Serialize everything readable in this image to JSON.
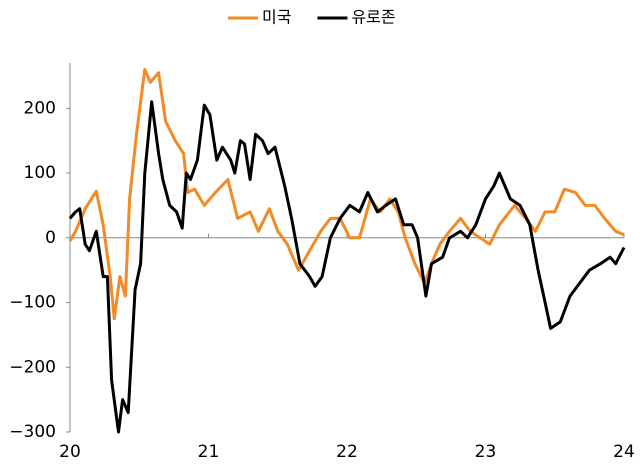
{
  "chart_data": {
    "type": "line",
    "xlim": [
      20,
      24
    ],
    "xticks": [
      20,
      21,
      22,
      23,
      24
    ],
    "ylim": [
      -300,
      270
    ],
    "yticks": [
      {
        "value": -300,
        "label": "−300"
      },
      {
        "value": -200,
        "label": "−200"
      },
      {
        "value": -100,
        "label": "−100"
      },
      0,
      100,
      200
    ],
    "grid": false,
    "legend": "top",
    "series": [
      {
        "name": "미국",
        "color": "#f28a25",
        "x": [
          20.0,
          20.04,
          20.11,
          20.19,
          20.24,
          20.29,
          20.32,
          20.36,
          20.4,
          20.43,
          20.48,
          20.54,
          20.58,
          20.64,
          20.69,
          20.76,
          20.82,
          20.85,
          20.9,
          20.97,
          21.05,
          21.14,
          21.21,
          21.3,
          21.36,
          21.44,
          21.5,
          21.57,
          21.65,
          21.73,
          21.81,
          21.88,
          21.95,
          22.02,
          22.09,
          22.17,
          22.24,
          22.31,
          22.37,
          22.42,
          22.49,
          22.56,
          22.61,
          22.67,
          22.74,
          22.82,
          22.89,
          22.96,
          23.03,
          23.1,
          23.21,
          23.29,
          23.36,
          23.43,
          23.5,
          23.57,
          23.65,
          23.72,
          23.79,
          23.86,
          23.94,
          24.0
        ],
        "values": [
          -5,
          10,
          45,
          72,
          20,
          -60,
          -125,
          -60,
          -90,
          60,
          160,
          260,
          240,
          255,
          180,
          150,
          130,
          70,
          75,
          50,
          70,
          90,
          30,
          40,
          10,
          45,
          10,
          -10,
          -50,
          -20,
          10,
          30,
          30,
          0,
          0,
          60,
          40,
          60,
          40,
          0,
          -40,
          -70,
          -40,
          -10,
          10,
          30,
          10,
          0,
          -10,
          20,
          50,
          30,
          10,
          40,
          40,
          75,
          70,
          50,
          50,
          30,
          10,
          5
        ]
      },
      {
        "name": "유로존",
        "color": "#000000",
        "x": [
          20.0,
          20.04,
          20.07,
          20.11,
          20.14,
          20.19,
          20.24,
          20.27,
          20.3,
          20.35,
          20.38,
          20.42,
          20.47,
          20.51,
          20.54,
          20.59,
          20.64,
          20.67,
          20.72,
          20.77,
          20.81,
          20.84,
          20.87,
          20.92,
          20.97,
          21.01,
          21.06,
          21.1,
          21.16,
          21.19,
          21.23,
          21.26,
          21.3,
          21.34,
          21.39,
          21.43,
          21.48,
          21.55,
          21.6,
          21.66,
          21.73,
          21.77,
          21.82,
          21.88,
          21.95,
          22.02,
          22.09,
          22.15,
          22.22,
          22.28,
          22.35,
          22.41,
          22.47,
          22.51,
          22.57,
          22.61,
          22.69,
          22.74,
          22.82,
          22.87,
          22.93,
          23.0,
          23.06,
          23.1,
          23.18,
          23.25,
          23.32,
          23.38,
          23.43,
          23.47,
          23.54,
          23.61,
          23.68,
          23.75,
          23.83,
          23.9,
          23.94,
          24.0
        ],
        "values": [
          30,
          40,
          45,
          -10,
          -20,
          10,
          -60,
          -60,
          -220,
          -300,
          -250,
          -270,
          -80,
          -40,
          100,
          210,
          130,
          90,
          50,
          40,
          15,
          100,
          90,
          120,
          205,
          190,
          120,
          140,
          120,
          100,
          150,
          145,
          90,
          160,
          150,
          130,
          140,
          80,
          30,
          -40,
          -60,
          -75,
          -60,
          0,
          30,
          50,
          40,
          70,
          40,
          50,
          60,
          20,
          20,
          0,
          -90,
          -40,
          -30,
          0,
          10,
          0,
          20,
          60,
          80,
          100,
          60,
          50,
          20,
          -50,
          -100,
          -140,
          -130,
          -90,
          -70,
          -50,
          -40,
          -30,
          -40,
          -15
        ]
      }
    ]
  }
}
